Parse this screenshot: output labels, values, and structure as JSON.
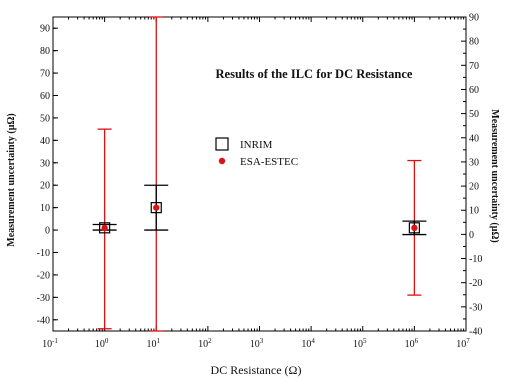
{
  "chart_data": {
    "type": "scatter",
    "title": "Results of the ILC for DC Resistance",
    "xlabel": "DC Resistance (Ω)",
    "ylabel": "Measurement uncertainty (μΩ)",
    "ylabel_right": "Measurement uncertainty (μΩ)",
    "x_scale": "log",
    "xlim": [
      0.1,
      10000000
    ],
    "ylim": [
      -45,
      95
    ],
    "yticks": [
      -40,
      -30,
      -20,
      -10,
      0,
      10,
      20,
      30,
      40,
      50,
      60,
      70,
      80,
      90
    ],
    "ylim_right": [
      -40,
      90
    ],
    "yticks_right": [
      -40,
      -30,
      -20,
      -10,
      0,
      10,
      20,
      30,
      40,
      50,
      60,
      70,
      80,
      90
    ],
    "xticks": [
      {
        "value": 0.1,
        "base": "10",
        "exp": "-1"
      },
      {
        "value": 1,
        "base": "10",
        "exp": "0"
      },
      {
        "value": 10,
        "base": "10",
        "exp": "1"
      },
      {
        "value": 100,
        "base": "10",
        "exp": "2"
      },
      {
        "value": 1000,
        "base": "10",
        "exp": "3"
      },
      {
        "value": 10000,
        "base": "10",
        "exp": "4"
      },
      {
        "value": 100000,
        "base": "10",
        "exp": "5"
      },
      {
        "value": 1000000,
        "base": "10",
        "exp": "6"
      },
      {
        "value": 10000000,
        "base": "10",
        "exp": "7"
      }
    ],
    "grid": false,
    "legend_position": "center",
    "series": [
      {
        "name": "INRIM",
        "marker": "open-square",
        "color": "#000000",
        "points": [
          {
            "x": 1,
            "y": 1,
            "ylow": 0,
            "yhigh": 2.5
          },
          {
            "x": 10,
            "y": 10,
            "ylow": 0,
            "yhigh": 20
          },
          {
            "x": 1000000,
            "y": 1,
            "ylow": -2,
            "yhigh": 4
          }
        ]
      },
      {
        "name": "ESA-ESTEC",
        "marker": "filled-circle",
        "color": "#dd1111",
        "points": [
          {
            "x": 1,
            "y": 1,
            "ylow": -44,
            "yhigh": 45
          },
          {
            "x": 10,
            "y": 10,
            "ylow": -45,
            "yhigh": 95
          },
          {
            "x": 1000000,
            "y": 1,
            "ylow": -29,
            "yhigh": 31
          }
        ]
      }
    ]
  }
}
